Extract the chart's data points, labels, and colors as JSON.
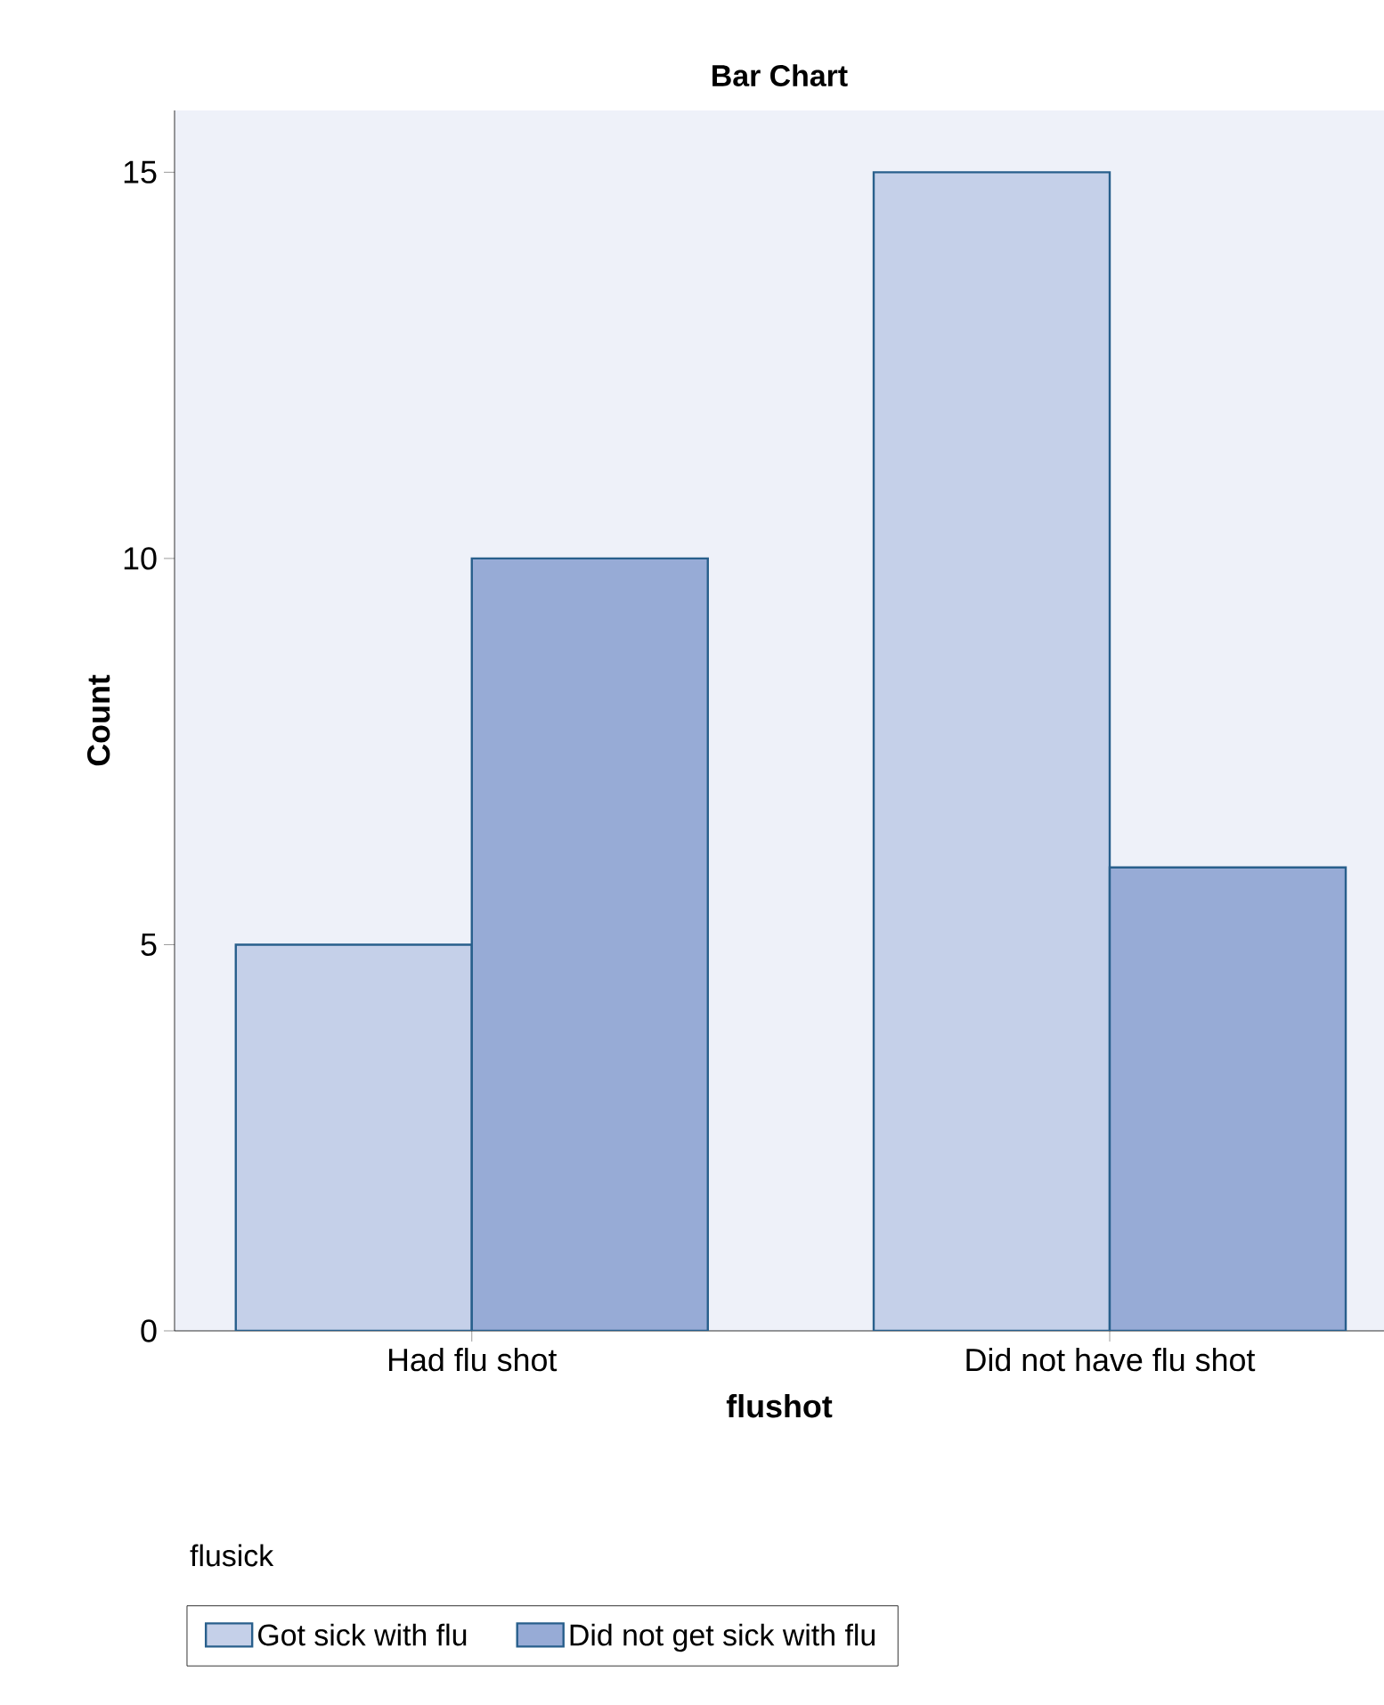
{
  "chart_data": {
    "type": "bar",
    "title": "Bar Chart",
    "xlabel": "flushot",
    "ylabel": "Count",
    "legend_title": "flusick",
    "categories": [
      "Had flu shot",
      "Did not have flu shot"
    ],
    "series": [
      {
        "name": "Got sick with flu",
        "color": "#c5d0e9",
        "values": [
          5,
          15
        ]
      },
      {
        "name": "Did not get sick with flu",
        "color": "#97abd6",
        "values": [
          10,
          6
        ]
      }
    ],
    "ylim": [
      0,
      15.8
    ],
    "yticks": [
      0,
      5,
      10,
      15
    ],
    "grid": false,
    "legend": "bottom"
  }
}
